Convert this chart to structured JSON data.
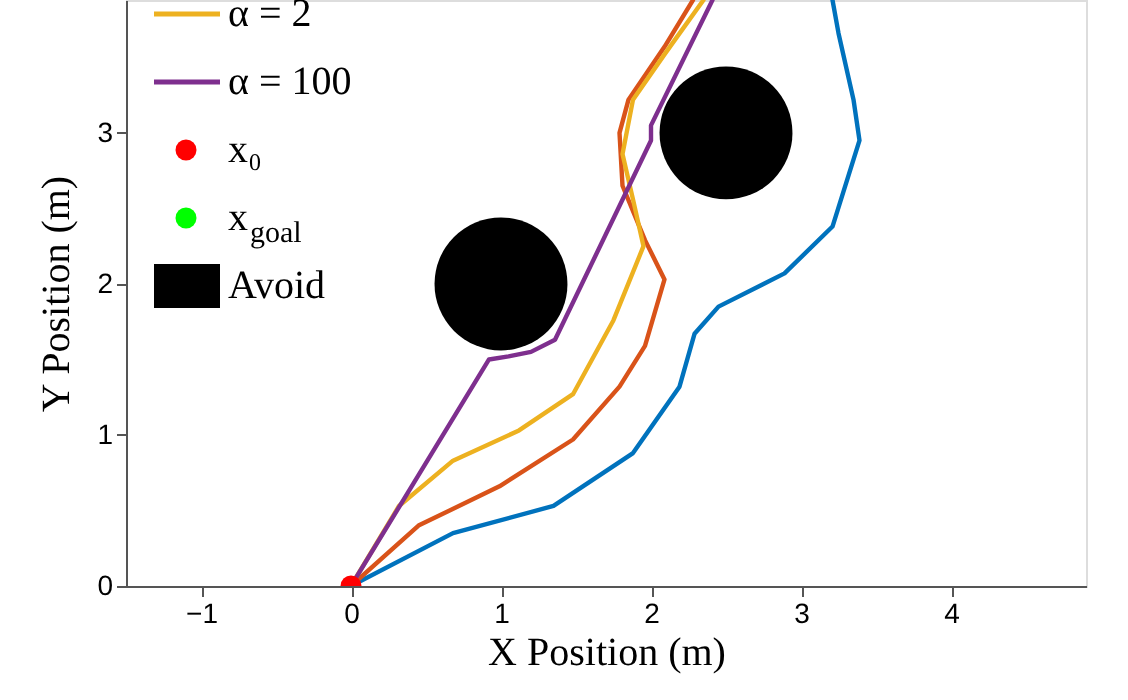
{
  "chart_data": {
    "type": "line",
    "xlabel": "X Position (m)",
    "ylabel": "Y Position (m)",
    "xlim": [
      -1.5,
      4.9
    ],
    "ylim": [
      0,
      3.88
    ],
    "xticks": [
      -1,
      0,
      1,
      2,
      3,
      4
    ],
    "yticks": [
      0,
      1,
      2,
      3
    ],
    "grid": false,
    "legend": "top left",
    "line_style": "solid",
    "series": [
      {
        "color": "#0072bd",
        "x": [
          0,
          0.68,
          1.35,
          1.88,
          2.19,
          2.29,
          2.45,
          2.89,
          3.21,
          3.39,
          3.35,
          3.25,
          3.21
        ],
        "values": [
          0,
          0.35,
          0.53,
          0.88,
          1.32,
          1.67,
          1.85,
          2.07,
          2.38,
          2.95,
          3.22,
          3.66,
          3.88
        ]
      },
      {
        "color": "#d95319",
        "x": [
          0,
          0.45,
          0.99,
          1.48,
          1.79,
          1.96,
          2.09,
          1.96,
          1.81,
          1.79,
          1.85,
          2.09,
          2.28
        ],
        "values": [
          0,
          0.4,
          0.66,
          0.97,
          1.32,
          1.59,
          2.03,
          2.29,
          2.65,
          3.0,
          3.22,
          3.57,
          3.88
        ]
      },
      {
        "name": "α = 2",
        "color": "#edb120",
        "x": [
          0,
          0.32,
          0.68,
          1.12,
          1.48,
          1.75,
          1.95,
          1.88,
          1.81,
          1.88,
          2.09,
          2.35
        ],
        "values": [
          0,
          0.53,
          0.83,
          1.03,
          1.27,
          1.76,
          2.25,
          2.56,
          2.86,
          3.22,
          3.52,
          3.88
        ]
      },
      {
        "name": "α = 100",
        "color": "#7e2f8e",
        "x": [
          0,
          0.92,
          1.05,
          1.2,
          1.36,
          2.0,
          2.0,
          2.41
        ],
        "values": [
          0,
          1.5,
          1.52,
          1.55,
          1.63,
          2.95,
          3.05,
          3.88
        ]
      },
      {
        "type": "scatter",
        "name": "x₀",
        "color": "#ff0000",
        "marker": "circle",
        "x": [
          0
        ],
        "values": [
          0
        ]
      },
      {
        "type": "scatter",
        "name": "x$_{goal}$",
        "color": "#00ff00",
        "marker": "circle"
      },
      {
        "type": "bubble",
        "name": "Avoid",
        "color": "#000000",
        "x": [
          1,
          2.5
        ],
        "values": [
          2,
          3
        ],
        "sizes": [
          1,
          1
        ]
      }
    ]
  }
}
